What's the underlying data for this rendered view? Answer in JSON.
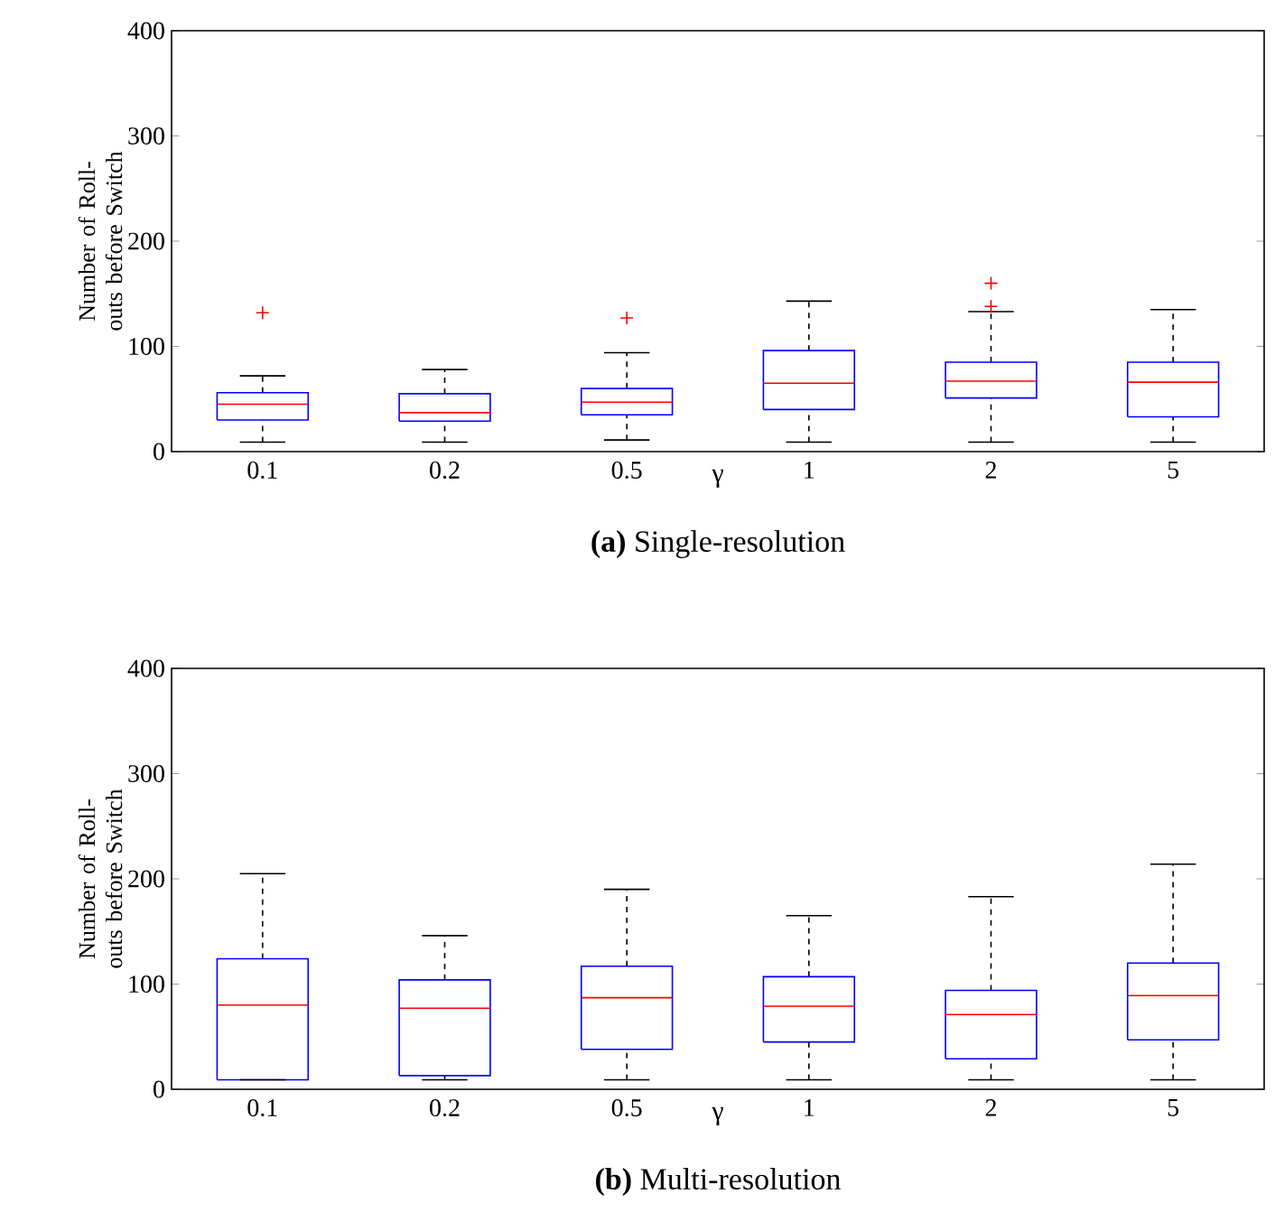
{
  "chart_data": [
    {
      "type": "box",
      "title": "**(a)** Single-resolution",
      "xlabel": "γ",
      "ylabel": "Number of Roll-outs before Switch",
      "categories": [
        "0.1",
        "0.2",
        "0.5",
        "1",
        "2",
        "5"
      ],
      "ylim": [
        0,
        400
      ],
      "yticks": [
        0,
        100,
        200,
        300,
        400
      ],
      "grid": false,
      "boxes": [
        {
          "low": 9,
          "q1": 30,
          "median": 45,
          "q3": 56,
          "high": 72,
          "outliers": [
            132
          ]
        },
        {
          "low": 9,
          "q1": 29,
          "median": 37,
          "q3": 55,
          "high": 78
        },
        {
          "low": 11,
          "q1": 35,
          "median": 47,
          "q3": 60,
          "high": 94,
          "outliers": [
            127
          ]
        },
        {
          "low": 9,
          "q1": 40,
          "median": 65,
          "q3": 96,
          "high": 143
        },
        {
          "low": 9,
          "q1": 51,
          "median": 67,
          "q3": 85,
          "high": 133,
          "outliers": [
            138,
            160
          ]
        },
        {
          "low": 9,
          "q1": 33,
          "median": 66,
          "q3": 85,
          "high": 135
        }
      ]
    },
    {
      "type": "box",
      "title": "**(b)** Multi-resolution",
      "xlabel": "γ",
      "ylabel": "Number of Roll-outs before Switch",
      "categories": [
        "0.1",
        "0.2",
        "0.5",
        "1",
        "2",
        "5"
      ],
      "ylim": [
        0,
        400
      ],
      "yticks": [
        0,
        100,
        200,
        300,
        400
      ],
      "grid": false,
      "boxes": [
        {
          "low": 9,
          "q1": 9,
          "median": 80,
          "q3": 124,
          "high": 205
        },
        {
          "low": 9,
          "q1": 13,
          "median": 77,
          "q3": 104,
          "high": 146
        },
        {
          "low": 9,
          "q1": 38,
          "median": 87,
          "q3": 117,
          "high": 190
        },
        {
          "low": 9,
          "q1": 45,
          "median": 79,
          "q3": 107,
          "high": 165
        },
        {
          "low": 9,
          "q1": 29,
          "median": 71,
          "q3": 94,
          "high": 183
        },
        {
          "low": 9,
          "q1": 47,
          "median": 89,
          "q3": 120,
          "high": 214
        }
      ]
    }
  ]
}
